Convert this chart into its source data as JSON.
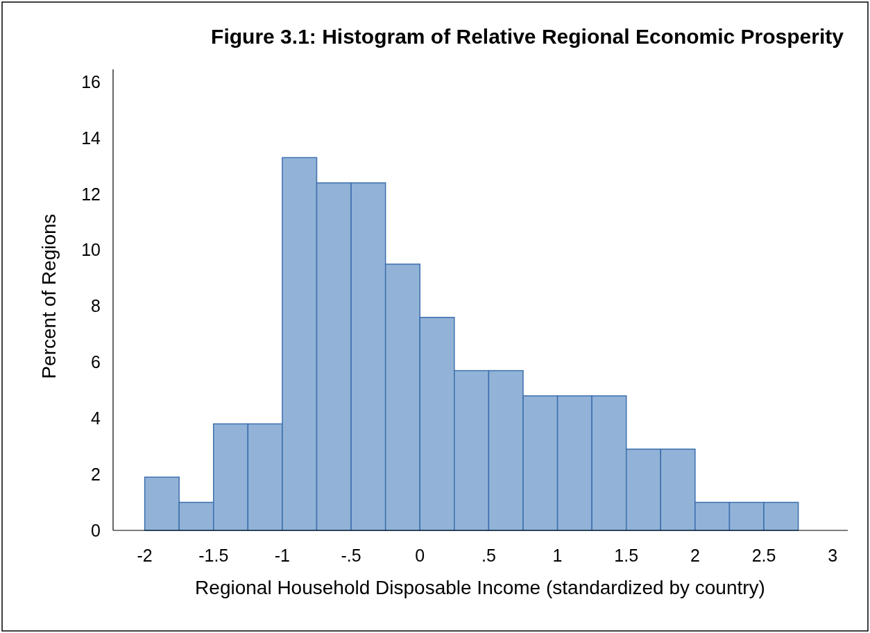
{
  "chart_data": {
    "type": "histogram",
    "title": "Figure 3.1: Histogram of Relative Regional Economic Prosperity",
    "xlabel": "Regional Household Disposable Income (standardized by country)",
    "ylabel": "Percent of Regions",
    "bins": [
      -2,
      -1.75,
      -1.5,
      -1.25,
      -1,
      -0.75,
      -0.5,
      -0.25,
      0,
      0.25,
      0.5,
      0.75,
      1,
      1.25,
      1.5,
      1.75,
      2,
      2.25,
      2.5,
      2.75
    ],
    "values": [
      1.9,
      1.0,
      3.8,
      3.8,
      13.3,
      12.4,
      12.4,
      9.5,
      7.6,
      5.7,
      5.7,
      4.8,
      4.8,
      4.8,
      2.9,
      2.9,
      1.0,
      1.0,
      1.0
    ],
    "color": "#92b3d7",
    "xlim": [
      -2.23,
      3.11
    ],
    "xticks": [
      -2,
      -1.5,
      -1,
      {
        "value": -0.5,
        "label": "-.5"
      },
      0,
      {
        "value": 0.5,
        "label": ".5"
      },
      1,
      1.5,
      2,
      2.5,
      3
    ],
    "ylim": [
      0,
      16.45
    ],
    "yticks": [
      0,
      2,
      4,
      6,
      8,
      10,
      12,
      14,
      16
    ],
    "grid": false
  }
}
